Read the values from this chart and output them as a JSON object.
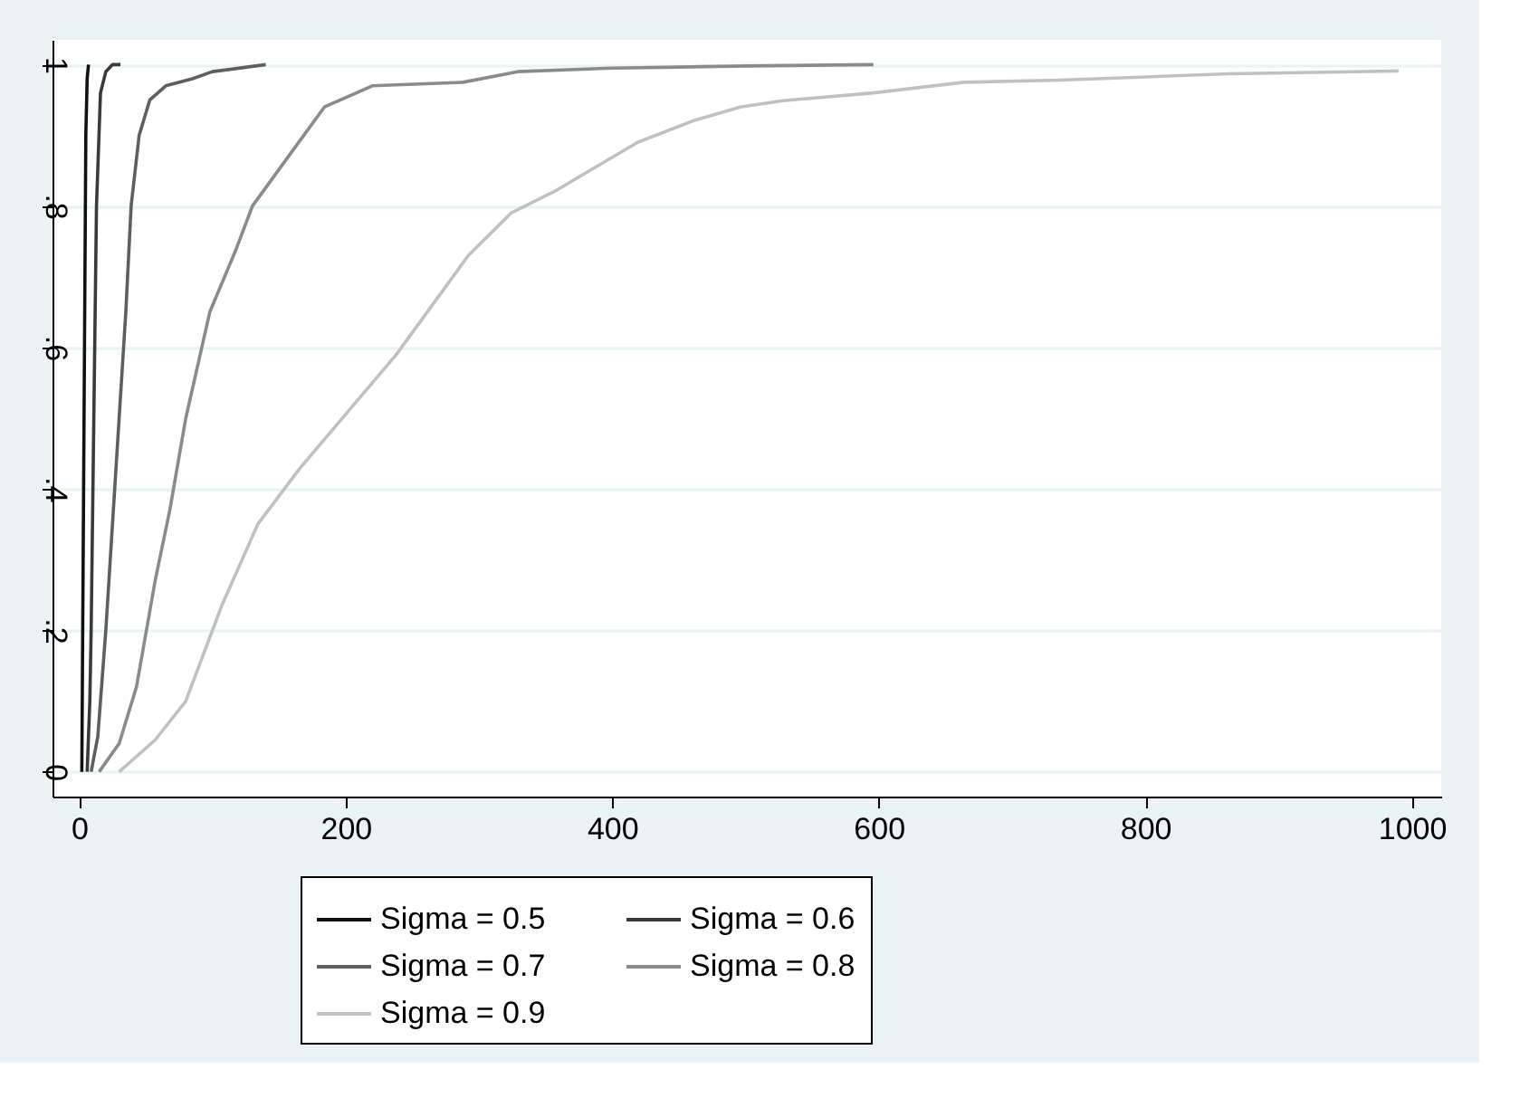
{
  "chart_data": {
    "type": "line",
    "xlim": [
      -20,
      1022
    ],
    "ylim": [
      -0.035,
      1.035
    ],
    "xticks": [
      0,
      200,
      400,
      600,
      800,
      1000
    ],
    "yticks": [
      0,
      {
        "value": 0.2,
        "label": ".2"
      },
      {
        "value": 0.4,
        "label": ".4"
      },
      {
        "value": 0.6,
        "label": ".6"
      },
      {
        "value": 0.8,
        "label": ".8"
      },
      1
    ],
    "grid": "y",
    "legend": "bottom",
    "line_style": "solid",
    "marker": "none",
    "series": [
      {
        "name": "Sigma = 0.5",
        "color": "#111111",
        "x": [
          2,
          3,
          4,
          5,
          6,
          7
        ],
        "values": [
          0,
          0.3,
          0.6,
          0.9,
          0.98,
          1
        ]
      },
      {
        "name": "Sigma = 0.6",
        "color": "#3a3a3a",
        "x": [
          6,
          8,
          9,
          11,
          13,
          16,
          20,
          25,
          31
        ],
        "values": [
          0,
          0.1,
          0.2,
          0.5,
          0.8,
          0.96,
          0.99,
          1,
          1
        ]
      },
      {
        "name": "Sigma = 0.7",
        "color": "#5e5e5e",
        "x": [
          9,
          14,
          20,
          25,
          30,
          35,
          39,
          45,
          53,
          65,
          85,
          100,
          140
        ],
        "values": [
          0,
          0.05,
          0.2,
          0.35,
          0.5,
          0.65,
          0.8,
          0.9,
          0.95,
          0.97,
          0.98,
          0.99,
          1
        ]
      },
      {
        "name": "Sigma = 0.8",
        "color": "#8a8a8a",
        "x": [
          15,
          30,
          43,
          57,
          68,
          80,
          98,
          118,
          130,
          157,
          184,
          220,
          288,
          329,
          400,
          500,
          596
        ],
        "values": [
          0,
          0.04,
          0.12,
          0.27,
          0.37,
          0.5,
          0.65,
          0.74,
          0.8,
          0.87,
          0.94,
          0.97,
          0.975,
          0.99,
          0.995,
          0.998,
          1
        ]
      },
      {
        "name": "Sigma = 0.9",
        "color": "#c0c0c0",
        "x": [
          30,
          57,
          80,
          107,
          134,
          166,
          202,
          238,
          292,
          324,
          356,
          392,
          419,
          460,
          496,
          528,
          596,
          664,
          736,
          863,
          990
        ],
        "values": [
          0,
          0.045,
          0.1,
          0.235,
          0.35,
          0.43,
          0.51,
          0.59,
          0.73,
          0.79,
          0.82,
          0.86,
          0.89,
          0.92,
          0.94,
          0.949,
          0.96,
          0.975,
          0.978,
          0.987,
          0.991
        ]
      }
    ]
  }
}
